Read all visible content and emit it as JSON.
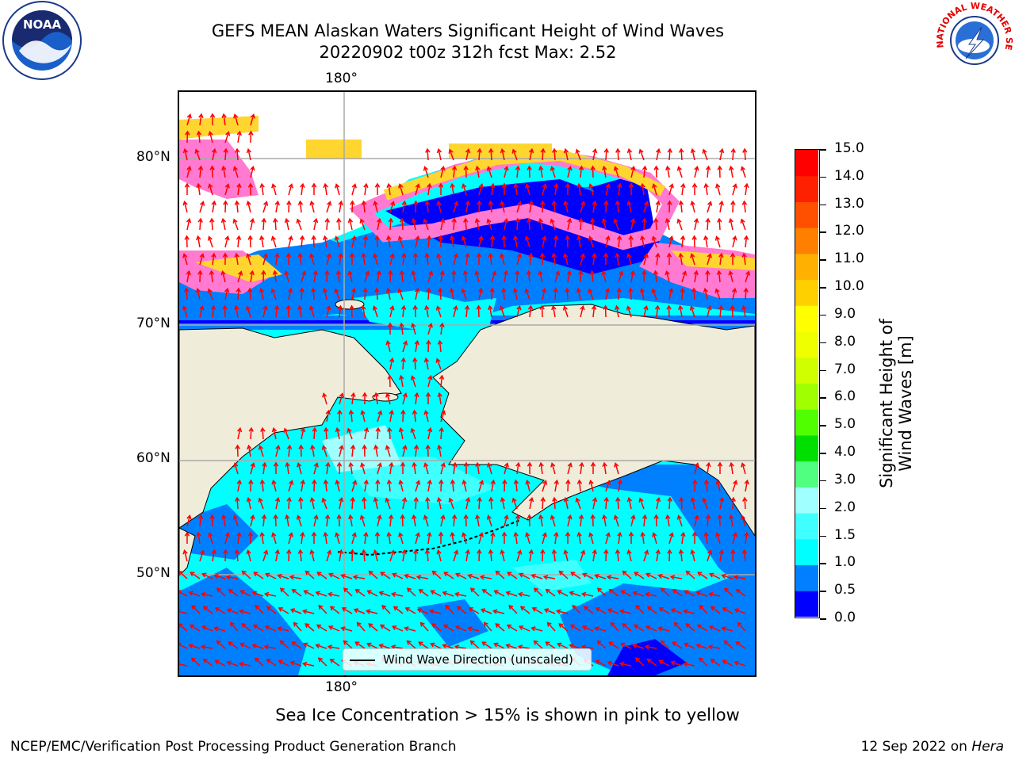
{
  "title": {
    "line1": "GEFS MEAN Alaskan Waters Significant Height of Wind Waves",
    "line2": "20220902 t00z 312h fcst   Max: 2.52"
  },
  "map": {
    "lon_labels": {
      "top": "180°",
      "bottom": "180°"
    },
    "lat_labels": [
      "80°N",
      "70°N",
      "60°N",
      "50°N"
    ],
    "legend": "Wind Wave Direction (unscaled)",
    "colors": {
      "land": "#efecda",
      "ice_white": "#ffffff",
      "ice_yellow": "#ffd530",
      "ice_pink": "#ff7ad0",
      "arrow": "#ff0000",
      "grid": "#aaaaaa"
    }
  },
  "colorbar": {
    "title": "Significant Height of Wind Waves [m]",
    "ticks": [
      "15.0",
      "14.0",
      "13.0",
      "12.0",
      "11.0",
      "10.0",
      "9.0",
      "8.0",
      "7.0",
      "6.0",
      "5.0",
      "4.0",
      "3.0",
      "2.0",
      "1.5",
      "1.0",
      "0.5",
      "0.0"
    ],
    "colors_bottom_to_top": [
      "#0000ff",
      "#0080ff",
      "#00ffff",
      "#40ffff",
      "#a0ffff",
      "#50ff80",
      "#00e000",
      "#50ff00",
      "#a0ff00",
      "#d0ff00",
      "#f0ff00",
      "#ffff00",
      "#ffd000",
      "#ffb000",
      "#ff8000",
      "#ff5000",
      "#ff2000",
      "#ff0000"
    ]
  },
  "note": "Sea Ice Concentration > 15% is shown in pink to yellow",
  "footer": {
    "left": "NCEP/EMC/Verification Post Processing Product Generation Branch",
    "right_date": "12 Sep 2022 on",
    "right_host": "Hera"
  },
  "logos": {
    "left": "NOAA",
    "right": "NATIONAL WEATHER SERVICE"
  }
}
